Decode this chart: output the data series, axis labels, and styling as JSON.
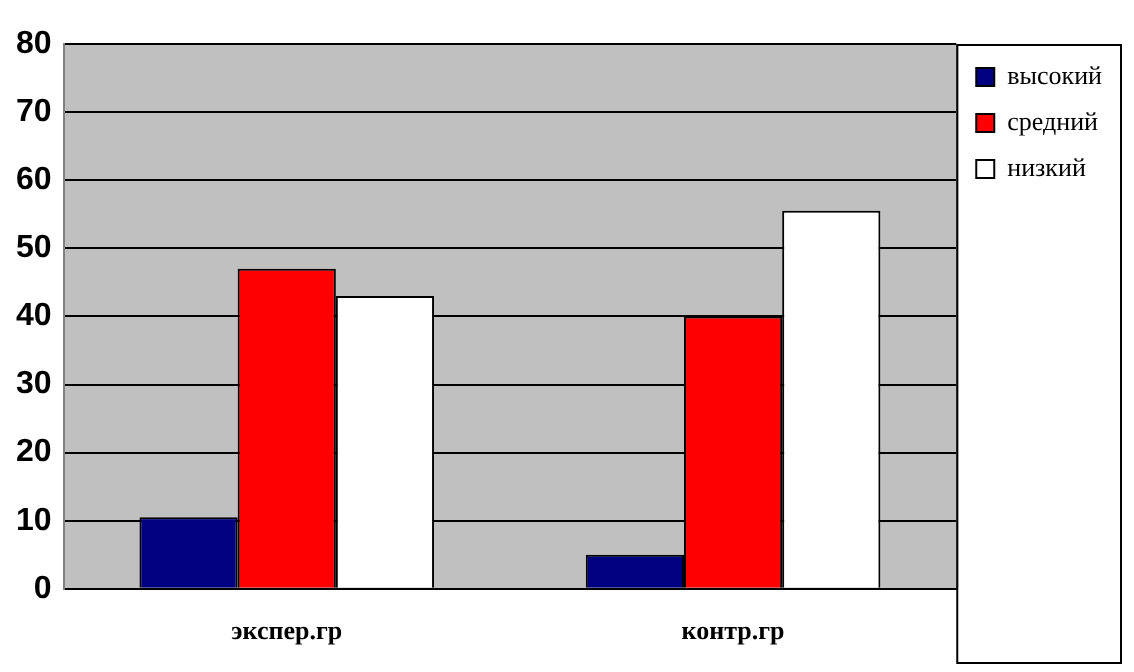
{
  "chart_data": {
    "type": "bar",
    "categories": [
      "экспер.гр",
      "контр.гр"
    ],
    "series": [
      {
        "name": "высокий",
        "color": "#000080",
        "values": [
          10.5,
          5
        ]
      },
      {
        "name": "средний",
        "color": "#ff0000",
        "values": [
          47,
          40
        ]
      },
      {
        "name": "низкий",
        "color": "#ffffff",
        "values": [
          43,
          55.5
        ]
      }
    ],
    "ylim": [
      0,
      80
    ],
    "yticks": [
      0,
      10,
      20,
      30,
      40,
      50,
      60,
      70,
      80
    ],
    "grid": "y",
    "legend": "right"
  }
}
